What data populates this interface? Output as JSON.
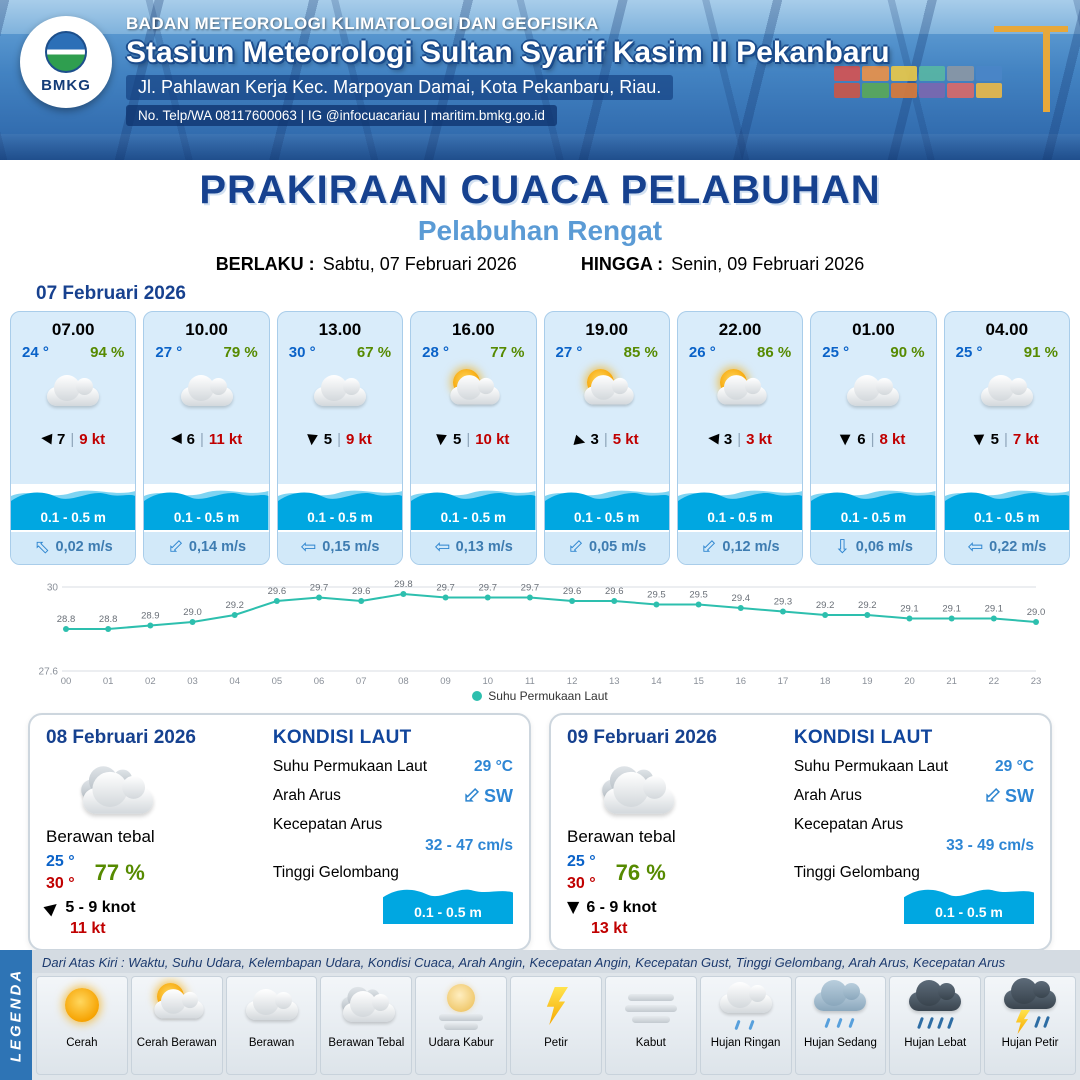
{
  "header": {
    "logo_text": "BMKG",
    "org": "BADAN METEOROLOGI KLIMATOLOGI DAN GEOFISIKA",
    "station": "Stasiun Meteorologi Sultan Syarif Kasim II Pekanbaru",
    "address": "Jl. Pahlawan Kerja Kec. Marpoyan Damai, Kota Pekanbaru, Riau.",
    "contact": "No. Telp/WA 08117600063 | IG @infocuacariau | maritim.bmkg.go.id"
  },
  "title": {
    "main": "PRAKIRAAN CUACA PELABUHAN",
    "subtitle": "Pelabuhan Rengat",
    "berlaku_label": "BERLAKU :",
    "berlaku_value": "Sabtu, 07 Februari 2026",
    "hingga_label": "HINGGA :",
    "hingga_value": "Senin, 09 Februari 2026"
  },
  "forecast_day": {
    "date": "07 Februari 2026",
    "cards": [
      {
        "time": "07.00",
        "temp": "24 °",
        "humidity": "94 %",
        "icon": "berawan",
        "wind": {
          "dir_deg": 185,
          "speed": "7",
          "gust": "9 kt"
        },
        "wave": "0.1 - 0.5 m",
        "current": {
          "dir_deg": -135,
          "speed": "0,02 m/s"
        }
      },
      {
        "time": "10.00",
        "temp": "27 °",
        "humidity": "79 %",
        "icon": "berawan",
        "wind": {
          "dir_deg": 180,
          "speed": "6",
          "gust": "11 kt"
        },
        "wave": "0.1 - 0.5 m",
        "current": {
          "dir_deg": 135,
          "speed": "0,14 m/s"
        }
      },
      {
        "time": "13.00",
        "temp": "30 °",
        "humidity": "67 %",
        "icon": "berawan",
        "wind": {
          "dir_deg": 95,
          "speed": "5",
          "gust": "9 kt"
        },
        "wave": "0.1 - 0.5 m",
        "current": {
          "dir_deg": 180,
          "speed": "0,15 m/s"
        }
      },
      {
        "time": "16.00",
        "temp": "28 °",
        "humidity": "77 %",
        "icon": "cerah-berawan",
        "wind": {
          "dir_deg": 95,
          "speed": "5",
          "gust": "10 kt"
        },
        "wave": "0.1 - 0.5 m",
        "current": {
          "dir_deg": 180,
          "speed": "0,13 m/s"
        }
      },
      {
        "time": "19.00",
        "temp": "27 °",
        "humidity": "85 %",
        "icon": "cerah-berawan",
        "wind": {
          "dir_deg": 15,
          "speed": "3",
          "gust": "5 kt"
        },
        "wave": "0.1 - 0.5 m",
        "current": {
          "dir_deg": 135,
          "speed": "0,05 m/s"
        }
      },
      {
        "time": "22.00",
        "temp": "26 °",
        "humidity": "86 %",
        "icon": "cerah-berawan",
        "wind": {
          "dir_deg": 185,
          "speed": "3",
          "gust": "3 kt"
        },
        "wave": "0.1 - 0.5 m",
        "current": {
          "dir_deg": 135,
          "speed": "0,12 m/s"
        }
      },
      {
        "time": "01.00",
        "temp": "25 °",
        "humidity": "90 %",
        "icon": "berawan",
        "wind": {
          "dir_deg": 90,
          "speed": "6",
          "gust": "8 kt"
        },
        "wave": "0.1 - 0.5 m",
        "current": {
          "dir_deg": 90,
          "speed": "0,06 m/s"
        }
      },
      {
        "time": "04.00",
        "temp": "25 °",
        "humidity": "91 %",
        "icon": "berawan",
        "wind": {
          "dir_deg": 88,
          "speed": "5",
          "gust": "7 kt"
        },
        "wave": "0.1 - 0.5 m",
        "current": {
          "dir_deg": 180,
          "speed": "0,22 m/s"
        }
      }
    ]
  },
  "chart_data": {
    "type": "line",
    "x": [
      "00",
      "01",
      "02",
      "03",
      "04",
      "05",
      "06",
      "07",
      "08",
      "09",
      "10",
      "11",
      "12",
      "13",
      "14",
      "15",
      "16",
      "17",
      "18",
      "19",
      "20",
      "21",
      "22",
      "23"
    ],
    "series": [
      {
        "name": "Suhu Permukaan Laut",
        "values": [
          28.8,
          28.8,
          28.9,
          29.0,
          29.2,
          29.6,
          29.7,
          29.6,
          29.8,
          29.7,
          29.7,
          29.7,
          29.6,
          29.6,
          29.5,
          29.5,
          29.4,
          29.3,
          29.2,
          29.2,
          29.1,
          29.1,
          29.1,
          29.0
        ]
      }
    ],
    "ylim": [
      27.6,
      30
    ],
    "yticks": [
      30,
      27.6
    ],
    "line_color": "#2dbfae",
    "grid": true,
    "legend_position": "bottom"
  },
  "day_cards": [
    {
      "date": "08 Februari 2026",
      "condition": "Berawan tebal",
      "icon": "berawan-tebal",
      "temp_min": "25 °",
      "temp_max": "30 °",
      "humidity": "77 %",
      "wind": {
        "dir_deg": -40,
        "range": "5 - 9 knot",
        "gust": "11 kt"
      },
      "sea": {
        "title": "KONDISI LAUT",
        "sst_label": "Suhu Permukaan Laut",
        "sst": "29 °C",
        "direction_label": "Arah Arus",
        "direction": "SW",
        "direction_deg": 135,
        "speed_label": "Kecepatan Arus",
        "speed": "32 - 47 cm/s",
        "wave_label": "Tinggi Gelombang",
        "wave": "0.1 - 0.5 m"
      }
    },
    {
      "date": "09 Februari 2026",
      "condition": "Berawan tebal",
      "icon": "berawan-tebal",
      "temp_min": "25 °",
      "temp_max": "30 °",
      "humidity": "76 %",
      "wind": {
        "dir_deg": 90,
        "range": "6 - 9 knot",
        "gust": "13 kt"
      },
      "sea": {
        "title": "KONDISI LAUT",
        "sst_label": "Suhu Permukaan Laut",
        "sst": "29 °C",
        "direction_label": "Arah Arus",
        "direction": "SW",
        "direction_deg": 135,
        "speed_label": "Kecepatan Arus",
        "speed": "33 - 49 cm/s",
        "wave_label": "Tinggi Gelombang",
        "wave": "0.1 - 0.5 m"
      }
    }
  ],
  "legend": {
    "side_label": "LEGENDA",
    "note": "Dari Atas Kiri : Waktu, Suhu Udara, Kelembapan Udara, Kondisi Cuaca, Arah Angin, Kecepatan Angin, Kecepatan Gust, Tinggi Gelombang, Arah Arus, Kecepatan Arus",
    "items": [
      {
        "label": "Cerah",
        "icon": "cerah"
      },
      {
        "label": "Cerah Berawan",
        "icon": "cerah-berawan"
      },
      {
        "label": "Berawan",
        "icon": "berawan"
      },
      {
        "label": "Berawan Tebal",
        "icon": "berawan-tebal"
      },
      {
        "label": "Udara Kabur",
        "icon": "udara-kabur"
      },
      {
        "label": "Petir",
        "icon": "petir"
      },
      {
        "label": "Kabut",
        "icon": "kabut"
      },
      {
        "label": "Hujan Ringan",
        "icon": "hujan-ringan"
      },
      {
        "label": "Hujan Sedang",
        "icon": "hujan-sedang"
      },
      {
        "label": "Hujan Lebat",
        "icon": "hujan-lebat"
      },
      {
        "label": "Hujan Petir",
        "icon": "hujan-petir"
      }
    ]
  },
  "colors": {
    "navy": "#16418f",
    "subtitle_blue": "#5b9bd5",
    "temp_blue": "#0a62c8",
    "humidity_green": "#568a00",
    "gust_red": "#c00000",
    "wave_cyan": "#00a7e1",
    "sea_value_blue": "#2e86d4",
    "sst_line_teal": "#2dbfae",
    "header_blue": "#2e74b5"
  }
}
